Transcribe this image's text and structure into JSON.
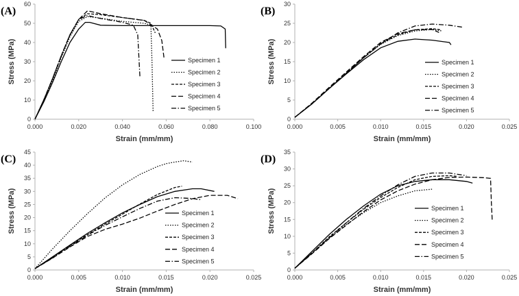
{
  "series_styles": [
    {
      "name": "Specimen 1",
      "dash": "",
      "width": 1.6
    },
    {
      "name": "Specimen 2",
      "dash": "1.5,2",
      "width": 1.3
    },
    {
      "name": "Specimen 3",
      "dash": "4,2",
      "width": 1.3
    },
    {
      "name": "Specimen 4",
      "dash": "7,3",
      "width": 1.3
    },
    {
      "name": "Specimen 5",
      "dash": "7,2.5,1.5,2.5",
      "width": 1.3
    }
  ],
  "chart_data": [
    {
      "type": "line",
      "panel_label": "(A)",
      "xlabel": "Strain (mm/mm)",
      "ylabel": "Stress (MPa)",
      "xlim": [
        0,
        0.1
      ],
      "ylim": [
        0,
        60
      ],
      "xticks": [
        "0.000",
        "0.020",
        "0.040",
        "0.060",
        "0.080",
        "0.100"
      ],
      "yticks": [
        "0",
        "10",
        "20",
        "30",
        "40",
        "50",
        "60"
      ],
      "legend_position": "right",
      "series": [
        {
          "name": "Specimen 1",
          "x": [
            0,
            0.004,
            0.008,
            0.012,
            0.016,
            0.02,
            0.023,
            0.025,
            0.03,
            0.04,
            0.06,
            0.08,
            0.085,
            0.087,
            0.0872
          ],
          "y": [
            0,
            9,
            19,
            30,
            40,
            47,
            50.5,
            50.5,
            49,
            48.8,
            48.8,
            48.8,
            48.6,
            47,
            37
          ]
        },
        {
          "name": "Specimen 2",
          "x": [
            0,
            0.004,
            0.008,
            0.012,
            0.016,
            0.02,
            0.024,
            0.028,
            0.04,
            0.05,
            0.053,
            0.0535,
            0.054
          ],
          "y": [
            0,
            10,
            20,
            32,
            43,
            51,
            53.5,
            53,
            51,
            50,
            49,
            30,
            4
          ]
        },
        {
          "name": "Specimen 3",
          "x": [
            0,
            0.004,
            0.008,
            0.012,
            0.016,
            0.02,
            0.024,
            0.03,
            0.04,
            0.05,
            0.053,
            0.055
          ],
          "y": [
            0,
            10,
            21,
            33,
            44,
            52,
            55,
            54.5,
            53,
            51.5,
            50,
            45
          ]
        },
        {
          "name": "Specimen 4",
          "x": [
            0,
            0.004,
            0.008,
            0.012,
            0.016,
            0.02,
            0.024,
            0.03,
            0.04,
            0.05,
            0.056,
            0.058,
            0.059
          ],
          "y": [
            0,
            10,
            21,
            33,
            44,
            52,
            56.5,
            55,
            53,
            51.5,
            47,
            41,
            32
          ]
        },
        {
          "name": "Specimen 5",
          "x": [
            0,
            0.004,
            0.008,
            0.012,
            0.016,
            0.02,
            0.024,
            0.03,
            0.04,
            0.045,
            0.047,
            0.048
          ],
          "y": [
            0,
            10,
            21,
            33,
            44,
            52,
            54,
            52.5,
            50.5,
            49,
            44,
            22
          ]
        }
      ]
    },
    {
      "type": "line",
      "panel_label": "(B)",
      "xlabel": "Strain (mm/mm)",
      "ylabel": "Stress (MPa)",
      "xlim": [
        0,
        0.025
      ],
      "ylim": [
        0,
        30
      ],
      "xticks": [
        "0.000",
        "0.005",
        "0.010",
        "0.015",
        "0.020",
        "0.025"
      ],
      "yticks": [
        "0",
        "5",
        "10",
        "15",
        "20",
        "25",
        "30"
      ],
      "legend_position": "right",
      "series": [
        {
          "name": "Specimen 1",
          "x": [
            0,
            0.002,
            0.004,
            0.006,
            0.008,
            0.01,
            0.012,
            0.014,
            0.016,
            0.018,
            0.0182
          ],
          "y": [
            0.5,
            4,
            8,
            11.8,
            15.5,
            18.6,
            20.3,
            20.9,
            20.6,
            20,
            19.4
          ]
        },
        {
          "name": "Specimen 2",
          "x": [
            0,
            0.002,
            0.004,
            0.006,
            0.008,
            0.01,
            0.012,
            0.014,
            0.016,
            0.0172
          ],
          "y": [
            0.5,
            4,
            8,
            12,
            16,
            19.5,
            21.8,
            23,
            23.4,
            23
          ]
        },
        {
          "name": "Specimen 3",
          "x": [
            0,
            0.002,
            0.004,
            0.006,
            0.008,
            0.01,
            0.012,
            0.014,
            0.016,
            0.017
          ],
          "y": [
            0.5,
            4,
            8,
            12,
            16,
            19.7,
            22,
            23.3,
            23.6,
            23.3
          ]
        },
        {
          "name": "Specimen 4",
          "x": [
            0,
            0.002,
            0.004,
            0.006,
            0.008,
            0.01,
            0.012,
            0.014,
            0.016,
            0.0168
          ],
          "y": [
            0.5,
            4.2,
            8.3,
            12.3,
            16.3,
            20,
            22.3,
            23.3,
            23.4,
            22.6
          ]
        },
        {
          "name": "Specimen 5",
          "x": [
            0,
            0.002,
            0.004,
            0.006,
            0.008,
            0.01,
            0.012,
            0.014,
            0.016,
            0.018,
            0.0195
          ],
          "y": [
            0.5,
            4,
            8,
            12,
            16,
            19.6,
            22.5,
            24.3,
            24.8,
            24.5,
            24
          ]
        }
      ]
    },
    {
      "type": "line",
      "panel_label": "(C)",
      "xlabel": "Strain (mm/mm)",
      "ylabel": "Stress (MPa)",
      "xlim": [
        0,
        0.025
      ],
      "ylim": [
        0,
        45
      ],
      "xticks": [
        "0.000",
        "0.005",
        "0.010",
        "0.015",
        "0.020",
        "0.025"
      ],
      "yticks": [
        "0",
        "5",
        "10",
        "15",
        "20",
        "25",
        "30",
        "35",
        "40",
        "45"
      ],
      "legend_position": "right",
      "series": [
        {
          "name": "Specimen 1",
          "x": [
            0,
            0.002,
            0.004,
            0.006,
            0.008,
            0.01,
            0.012,
            0.014,
            0.016,
            0.018,
            0.019,
            0.0205
          ],
          "y": [
            0.5,
            5,
            9.5,
            14,
            18,
            21.8,
            25,
            28,
            30,
            31,
            31,
            30
          ]
        },
        {
          "name": "Specimen 2",
          "x": [
            0,
            0.002,
            0.004,
            0.006,
            0.008,
            0.01,
            0.012,
            0.014,
            0.015,
            0.016,
            0.017,
            0.018
          ],
          "y": [
            0.5,
            8,
            15,
            21.5,
            27.5,
            32.5,
            36.5,
            39.5,
            40.6,
            41.2,
            41.7,
            41.2
          ]
        },
        {
          "name": "Specimen 3",
          "x": [
            0,
            0.002,
            0.004,
            0.006,
            0.008,
            0.01,
            0.012,
            0.014,
            0.016,
            0.0168
          ],
          "y": [
            0.5,
            4.8,
            9.3,
            13.5,
            17.5,
            21.3,
            25.2,
            28.8,
            31.5,
            32
          ]
        },
        {
          "name": "Specimen 4",
          "x": [
            0,
            0.002,
            0.004,
            0.006,
            0.008,
            0.01,
            0.012,
            0.014,
            0.016,
            0.018,
            0.02,
            0.022,
            0.0232
          ],
          "y": [
            0.5,
            4.5,
            8.8,
            12.8,
            15.5,
            17.5,
            19.8,
            22.5,
            25,
            27.2,
            28.5,
            28.5,
            27.2
          ]
        },
        {
          "name": "Specimen 5",
          "x": [
            0,
            0.002,
            0.004,
            0.006,
            0.008,
            0.01,
            0.012,
            0.014,
            0.016,
            0.018,
            0.019
          ],
          "y": [
            0.5,
            4.6,
            9,
            13.3,
            17,
            20.3,
            23.5,
            26.3,
            27.6,
            27.3,
            26.8
          ]
        }
      ]
    },
    {
      "type": "line",
      "panel_label": "(D)",
      "xlabel": "Strain (mm/mm)",
      "ylabel": "Stress (MPa)",
      "xlim": [
        0,
        0.025
      ],
      "ylim": [
        0,
        35
      ],
      "xticks": [
        "0.000",
        "0.005",
        "0.010",
        "0.015",
        "0.020",
        "0.025"
      ],
      "yticks": [
        "0",
        "5",
        "10",
        "15",
        "20",
        "25",
        "30",
        "35"
      ],
      "legend_position": "right",
      "series": [
        {
          "name": "Specimen 1",
          "x": [
            0,
            0.002,
            0.004,
            0.006,
            0.008,
            0.01,
            0.012,
            0.014,
            0.016,
            0.018,
            0.02,
            0.0207
          ],
          "y": [
            0.5,
            5.5,
            10.5,
            15,
            19,
            22.5,
            25,
            26.3,
            26.8,
            26.8,
            26.3,
            25.8
          ]
        },
        {
          "name": "Specimen 2",
          "x": [
            0,
            0.002,
            0.004,
            0.006,
            0.008,
            0.01,
            0.012,
            0.014,
            0.016
          ],
          "y": [
            0.5,
            5,
            9.5,
            13.5,
            17,
            20,
            22,
            23.5,
            24
          ]
        },
        {
          "name": "Specimen 3",
          "x": [
            0,
            0.002,
            0.004,
            0.006,
            0.008,
            0.01,
            0.012,
            0.014,
            0.016,
            0.018,
            0.019
          ],
          "y": [
            0.5,
            5,
            9.8,
            14,
            18,
            21.5,
            24.5,
            26.8,
            27.8,
            28,
            27.8
          ]
        },
        {
          "name": "Specimen 4",
          "x": [
            0,
            0.002,
            0.004,
            0.006,
            0.008,
            0.01,
            0.012,
            0.014,
            0.016,
            0.018,
            0.02,
            0.022,
            0.0228,
            0.0229,
            0.023
          ],
          "y": [
            0.5,
            4.8,
            9.3,
            13.3,
            17.3,
            20.8,
            23.5,
            25.5,
            26.8,
            27.5,
            27.6,
            27.4,
            27.2,
            20,
            14.5
          ]
        },
        {
          "name": "Specimen 5",
          "x": [
            0,
            0.002,
            0.004,
            0.006,
            0.008,
            0.01,
            0.012,
            0.014,
            0.016,
            0.018,
            0.02
          ],
          "y": [
            0.5,
            5,
            9.5,
            14,
            18.3,
            22,
            25.3,
            27.8,
            28.8,
            28.8,
            28
          ]
        }
      ]
    }
  ]
}
